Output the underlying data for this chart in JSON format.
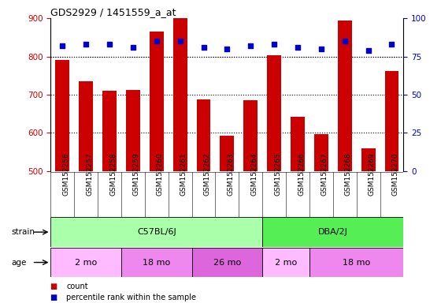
{
  "title": "GDS2929 / 1451559_a_at",
  "categories": [
    "GSM152256",
    "GSM152257",
    "GSM152258",
    "GSM152259",
    "GSM152260",
    "GSM152261",
    "GSM152262",
    "GSM152263",
    "GSM152264",
    "GSM152265",
    "GSM152266",
    "GSM152267",
    "GSM152268",
    "GSM152269",
    "GSM152270"
  ],
  "counts": [
    790,
    735,
    710,
    712,
    865,
    900,
    688,
    592,
    685,
    803,
    642,
    597,
    893,
    560,
    762
  ],
  "percentile_ranks": [
    82,
    83,
    83,
    81,
    85,
    85,
    81,
    80,
    82,
    83,
    81,
    80,
    85,
    79,
    83
  ],
  "bar_color": "#CC0000",
  "dot_color": "#0000CC",
  "ylim_left": [
    500,
    900
  ],
  "ylim_right": [
    0,
    100
  ],
  "yticks_left": [
    500,
    600,
    700,
    800,
    900
  ],
  "yticks_right": [
    0,
    25,
    50,
    75,
    100
  ],
  "strain_groups": [
    {
      "label": "C57BL/6J",
      "start": 0,
      "end": 9,
      "color": "#AAFFAA"
    },
    {
      "label": "DBA/2J",
      "start": 9,
      "end": 15,
      "color": "#55EE55"
    }
  ],
  "age_groups": [
    {
      "label": "2 mo",
      "start": 0,
      "end": 3,
      "color": "#FFBBFF"
    },
    {
      "label": "18 mo",
      "start": 3,
      "end": 6,
      "color": "#EE88EE"
    },
    {
      "label": "26 mo",
      "start": 6,
      "end": 9,
      "color": "#DD66DD"
    },
    {
      "label": "2 mo",
      "start": 9,
      "end": 11,
      "color": "#FFBBFF"
    },
    {
      "label": "18 mo",
      "start": 11,
      "end": 15,
      "color": "#EE88EE"
    }
  ],
  "legend_items": [
    {
      "label": "count",
      "color": "#CC0000"
    },
    {
      "label": "percentile rank within the sample",
      "color": "#0000CC"
    }
  ],
  "background_color": "#FFFFFF",
  "plot_bg_color": "#FFFFFF",
  "tick_label_color_left": "#CC0000",
  "tick_label_color_right": "#0000CC",
  "xtick_bg_color": "#CCCCCC"
}
